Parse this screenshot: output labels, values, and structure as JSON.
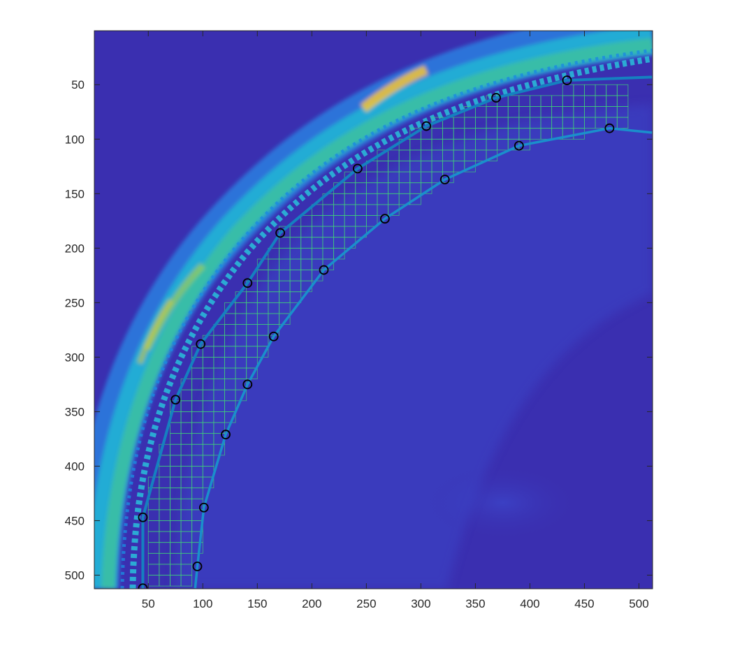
{
  "figure": {
    "x_ticks": [
      "50",
      "100",
      "150",
      "200",
      "250",
      "300",
      "350",
      "400",
      "450",
      "500"
    ],
    "y_ticks": [
      "50",
      "100",
      "150",
      "200",
      "250",
      "300",
      "350",
      "400",
      "450",
      "500"
    ],
    "colors": {
      "background_low": "#3a2fb0",
      "band_mid": "#1fa8d6",
      "band_high": "#48c08a",
      "hotspot": "#f6c532",
      "boundary_line": "#1580c0",
      "grid": "#3fd07a",
      "marker_edge": "#000000"
    }
  },
  "chart_data": {
    "type": "scatter",
    "title": "",
    "xlabel": "",
    "ylabel": "",
    "xlim": [
      1,
      512
    ],
    "ylim": [
      512,
      1
    ],
    "y_reversed": true,
    "grid": false,
    "series": [
      {
        "role": "outer-boundary",
        "points": [
          {
            "x": 45,
            "y": 512
          },
          {
            "x": 45,
            "y": 447
          },
          {
            "x": 75,
            "y": 339
          },
          {
            "x": 98,
            "y": 288
          },
          {
            "x": 141,
            "y": 232
          },
          {
            "x": 171,
            "y": 186
          },
          {
            "x": 242,
            "y": 127
          },
          {
            "x": 305,
            "y": 88
          },
          {
            "x": 369,
            "y": 62
          },
          {
            "x": 434,
            "y": 46
          }
        ]
      },
      {
        "role": "inner-boundary",
        "points": [
          {
            "x": 95,
            "y": 492
          },
          {
            "x": 101,
            "y": 438
          },
          {
            "x": 121,
            "y": 371
          },
          {
            "x": 141,
            "y": 325
          },
          {
            "x": 165,
            "y": 281
          },
          {
            "x": 211,
            "y": 220
          },
          {
            "x": 267,
            "y": 173
          },
          {
            "x": 322,
            "y": 137
          },
          {
            "x": 390,
            "y": 106
          },
          {
            "x": 473,
            "y": 90
          }
        ]
      }
    ]
  }
}
